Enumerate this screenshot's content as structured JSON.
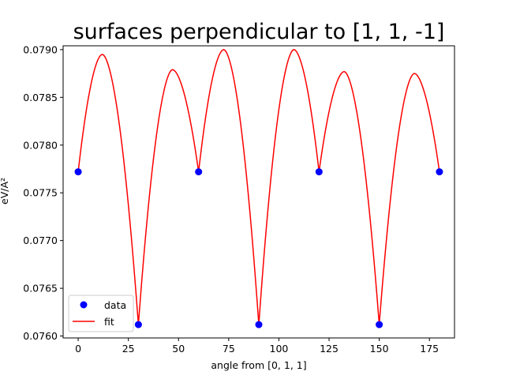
{
  "chart_data": {
    "type": "line",
    "title": "surfaces perpendicular to [1, 1, -1]",
    "xlabel": "angle from [0, 1, 1]",
    "ylabel": "eV/A²",
    "xlim": [
      -7.5,
      187.5
    ],
    "ylim": [
      0.07598,
      0.07904
    ],
    "xticks": [
      0,
      25,
      50,
      75,
      100,
      125,
      150,
      175
    ],
    "yticks": [
      0.076,
      0.0765,
      0.077,
      0.0775,
      0.078,
      0.0785,
      0.079
    ],
    "ytick_labels": [
      "0.0760",
      "0.0765",
      "0.0770",
      "0.0775",
      "0.0780",
      "0.0785",
      "0.0790"
    ],
    "grid": false,
    "legend_position": "lower-left",
    "series": [
      {
        "name": "data",
        "kind": "markers",
        "color": "#0000ff",
        "x": [
          0,
          30,
          60,
          90,
          120,
          150,
          180
        ],
        "y": [
          0.07772,
          0.07612,
          0.07772,
          0.07612,
          0.07772,
          0.07612,
          0.07772
        ]
      },
      {
        "name": "fit",
        "kind": "line",
        "color": "#ff0000",
        "segments": [
          {
            "x0": 0,
            "x1": 30,
            "ya": 0.07772,
            "yb": 0.07612,
            "peak_x": 12,
            "peak_y": 0.07895
          },
          {
            "x0": 30,
            "x1": 60,
            "ya": 0.07612,
            "yb": 0.07772,
            "peak_x": 47,
            "peak_y": 0.07879
          },
          {
            "x0": 60,
            "x1": 90,
            "ya": 0.07772,
            "yb": 0.07612,
            "peak_x": 72.5,
            "peak_y": 0.079
          },
          {
            "x0": 90,
            "x1": 120,
            "ya": 0.07612,
            "yb": 0.07772,
            "peak_x": 107.5,
            "peak_y": 0.079
          },
          {
            "x0": 120,
            "x1": 150,
            "ya": 0.07772,
            "yb": 0.07612,
            "peak_x": 132.5,
            "peak_y": 0.07877
          },
          {
            "x0": 150,
            "x1": 180,
            "ya": 0.07612,
            "yb": 0.07772,
            "peak_x": 167.5,
            "peak_y": 0.07875
          }
        ]
      }
    ]
  }
}
